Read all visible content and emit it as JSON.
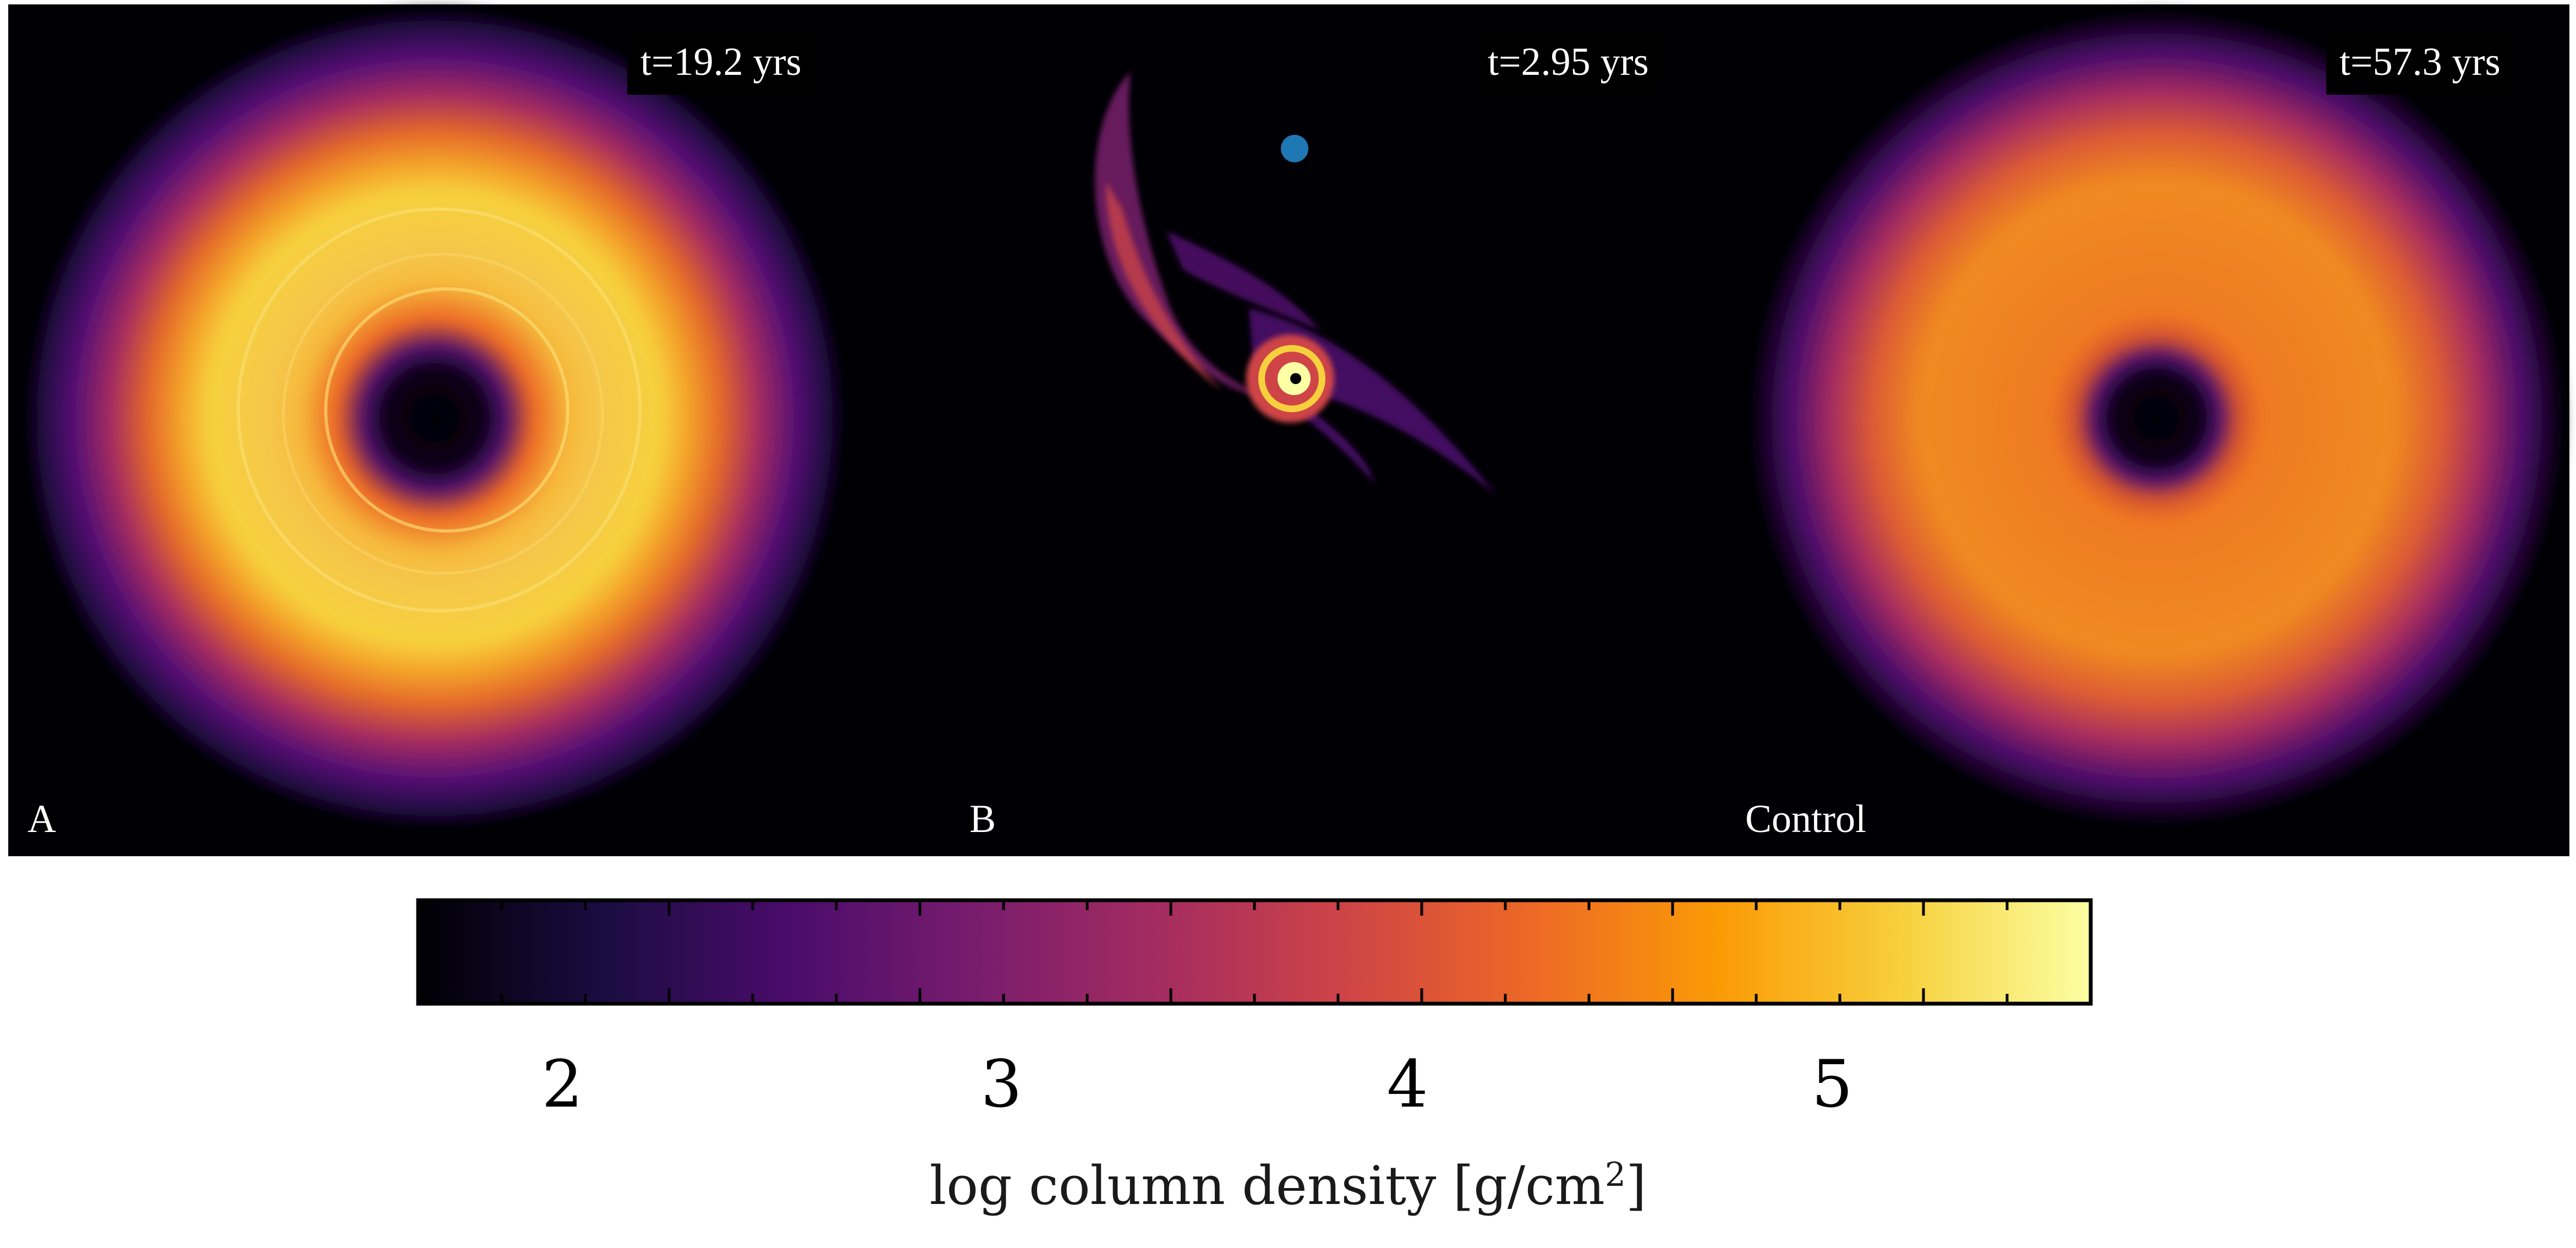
{
  "panels": [
    {
      "label": "A",
      "time": "t=19.2 yrs"
    },
    {
      "label": "B",
      "time": "t=2.95 yrs"
    },
    {
      "label": "Control",
      "time": "t=57.3 yrs"
    }
  ],
  "colorbar": {
    "ticks": [
      "2",
      "3",
      "4",
      "5"
    ],
    "label_prefix": "log column density [g/cm",
    "label_sup": "2",
    "label_suffix": "]",
    "colors": [
      "#000004",
      "#1b0c41",
      "#4a0c6b",
      "#781c6d",
      "#a52c60",
      "#cf4446",
      "#ed6925",
      "#fb9b06",
      "#f7d13d",
      "#fcffa4"
    ]
  },
  "marker_color": "#1f77b4"
}
